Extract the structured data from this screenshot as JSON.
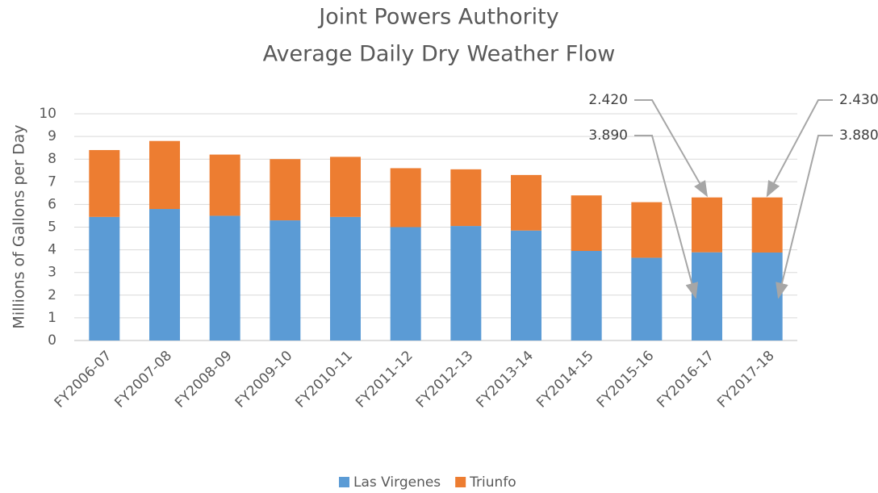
{
  "chart_data": {
    "type": "stacked_bar",
    "title": [
      "Joint Powers Authority",
      "Average Daily Dry Weather Flow"
    ],
    "y_label": "Millions of Gallons per Day",
    "categories": [
      "FY2006-07",
      "FY2007-08",
      "FY2008-09",
      "FY2009-10",
      "FY2010-11",
      "FY2011-12",
      "FY2012-13",
      "FY2013-14",
      "FY2014-15",
      "FY2015-16",
      "FY2016-17",
      "FY2017-18"
    ],
    "series": [
      {
        "name": "Las Virgenes",
        "color": "#5b9bd5",
        "values": [
          5.45,
          5.8,
          5.5,
          5.3,
          5.45,
          5.0,
          5.05,
          4.85,
          3.95,
          3.65,
          3.89,
          3.88
        ],
        "value_labels": [
          null,
          null,
          null,
          null,
          null,
          null,
          null,
          null,
          null,
          null,
          "3.890",
          "3.880"
        ]
      },
      {
        "name": "Triunfo",
        "color": "#ed7d31",
        "values": [
          2.95,
          3.0,
          2.7,
          2.7,
          2.65,
          2.6,
          2.5,
          2.45,
          2.45,
          2.45,
          2.42,
          2.43
        ],
        "value_labels": [
          null,
          null,
          null,
          null,
          null,
          null,
          null,
          null,
          null,
          null,
          "2.420",
          "2.430"
        ]
      }
    ],
    "ylim": [
      0,
      10
    ],
    "yticks": [
      0,
      1,
      2,
      3,
      4,
      5,
      6,
      7,
      8,
      9,
      10
    ],
    "grid": true,
    "legend": "bottom"
  }
}
